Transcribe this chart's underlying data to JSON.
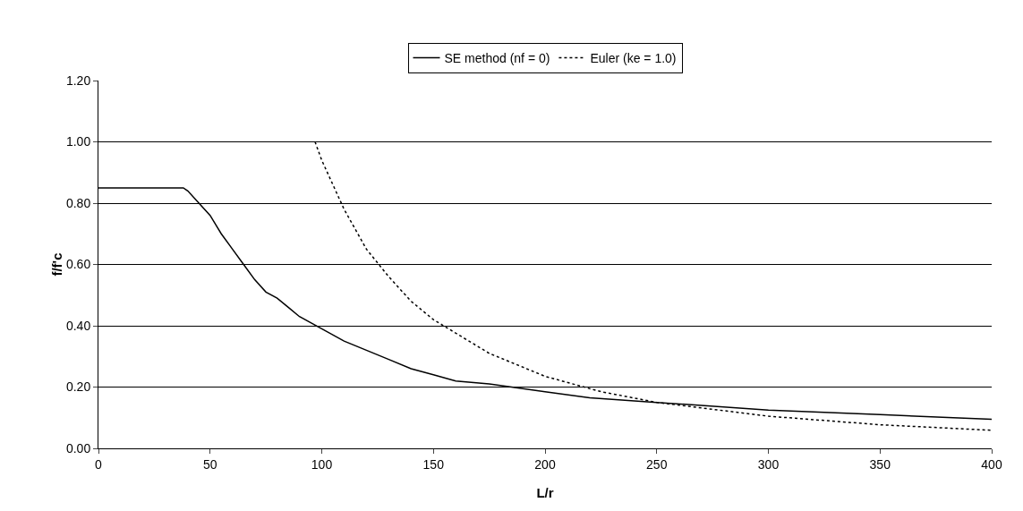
{
  "chart_data": {
    "type": "line",
    "xlabel": "L/r",
    "ylabel": "f/f'c",
    "xlim": [
      0,
      400
    ],
    "xticks": [
      0,
      50,
      100,
      150,
      200,
      250,
      300,
      350,
      400
    ],
    "ylim": [
      0,
      1.2
    ],
    "yticks": [
      {
        "value": 0,
        "label": "0.00"
      },
      {
        "value": 0.2,
        "label": "0.20"
      },
      {
        "value": 0.4,
        "label": "0.40"
      },
      {
        "value": 0.6,
        "label": "0.60"
      },
      {
        "value": 0.8,
        "label": "0.80"
      },
      {
        "value": 1.0,
        "label": "1.00"
      },
      {
        "value": 1.2,
        "label": "1.20"
      }
    ],
    "grid": "y",
    "legend": "top",
    "marker": "none",
    "series": [
      {
        "name": "SE method (nf = 0)",
        "color": "#000000",
        "line_style": "solid",
        "x": [
          0,
          20,
          38,
          40,
          45,
          50,
          55,
          60,
          65,
          70,
          75,
          80,
          85,
          90,
          100,
          110,
          120,
          130,
          140,
          150,
          160,
          175,
          200,
          220,
          250,
          300,
          350,
          400
        ],
        "values": [
          0.85,
          0.85,
          0.85,
          0.84,
          0.8,
          0.76,
          0.7,
          0.65,
          0.6,
          0.55,
          0.51,
          0.49,
          0.46,
          0.43,
          0.39,
          0.35,
          0.32,
          0.29,
          0.26,
          0.24,
          0.22,
          0.21,
          0.185,
          0.165,
          0.15,
          0.125,
          0.11,
          0.095
        ]
      },
      {
        "name": "Euler (ke = 1.0)",
        "color": "#000000",
        "line_style": "dotted",
        "x": [
          97,
          100,
          110,
          120,
          130,
          140,
          150,
          175,
          200,
          225,
          250,
          300,
          350,
          400
        ],
        "values": [
          1.0,
          0.94,
          0.78,
          0.65,
          0.56,
          0.48,
          0.42,
          0.31,
          0.235,
          0.185,
          0.15,
          0.105,
          0.077,
          0.059
        ]
      }
    ]
  }
}
